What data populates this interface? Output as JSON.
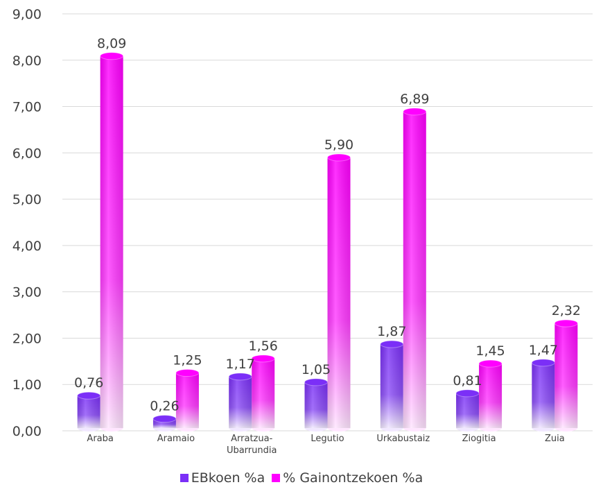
{
  "chart_data": {
    "type": "bar",
    "categories": [
      "Araba",
      "Aramaio",
      "Arratzua-Ubarrundia",
      "Legutio",
      "Urkabustaiz",
      "Ziogitia",
      "Zuia"
    ],
    "category_lines": [
      [
        "Araba"
      ],
      [
        "Aramaio"
      ],
      [
        "Arratzua-",
        "Ubarrundia"
      ],
      [
        "Legutio"
      ],
      [
        "Urkabustaiz"
      ],
      [
        "Ziogitia"
      ],
      [
        "Zuia"
      ]
    ],
    "series": [
      {
        "name": "EBkoen %a",
        "values": [
          0.76,
          0.26,
          1.17,
          1.05,
          1.87,
          0.81,
          1.47
        ],
        "labels": [
          "0,76",
          "0,26",
          "1,17",
          "1,05",
          "1,87",
          "0,81",
          "1,47"
        ],
        "color": "#7b2ff7"
      },
      {
        "name": "% Gainontzekoen %a",
        "values": [
          8.09,
          1.25,
          1.56,
          5.9,
          6.89,
          1.45,
          2.32
        ],
        "labels": [
          "8,09",
          "1,25",
          "1,56",
          "5,90",
          "6,89",
          "1,45",
          "2,32"
        ],
        "color": "#ff00ff"
      }
    ],
    "ylim": [
      0,
      9
    ],
    "yticks": [
      "0,00",
      "1,00",
      "2,00",
      "3,00",
      "4,00",
      "5,00",
      "6,00",
      "7,00",
      "8,00",
      "9,00"
    ],
    "grid": true,
    "legend": "bottom",
    "title": "",
    "xlabel": "",
    "ylabel": ""
  }
}
